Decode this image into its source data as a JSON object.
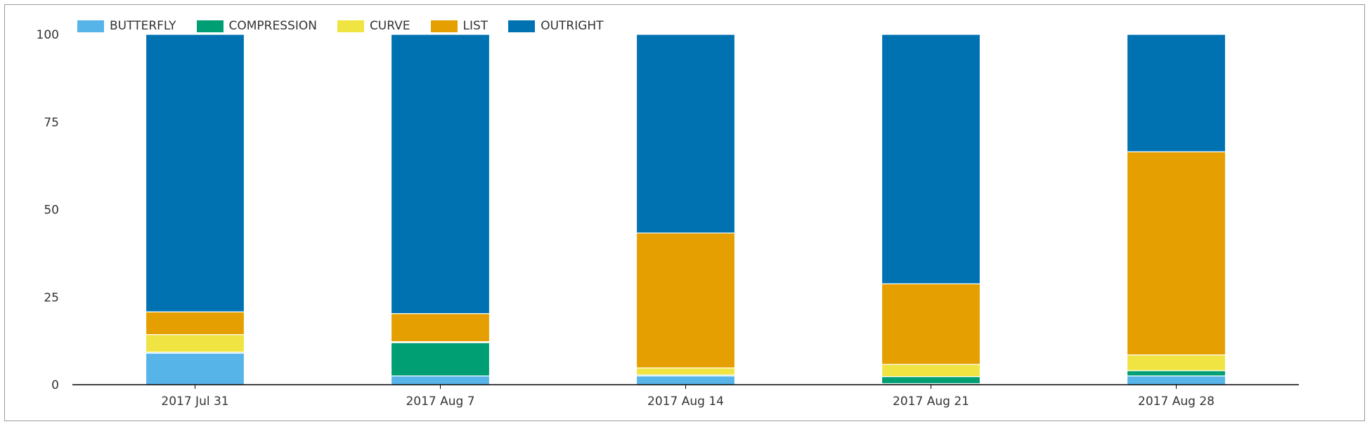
{
  "chart_data": {
    "type": "bar",
    "stacked": true,
    "title": "",
    "xlabel": "",
    "ylabel": "",
    "ylim": [
      0,
      100
    ],
    "yticks": [
      "0",
      "25",
      "50",
      "75",
      "100"
    ],
    "categories": [
      "2017 Jul 31",
      "2017 Aug 7",
      "2017 Aug 14",
      "2017 Aug 21",
      "2017 Aug 28"
    ],
    "series": [
      {
        "name": "BUTTERFLY",
        "color": "#56b4e9",
        "values": [
          9,
          2.5,
          2.5,
          0.3,
          2.5
        ]
      },
      {
        "name": "COMPRESSION",
        "color": "#009e73",
        "values": [
          0.3,
          9.5,
          0.3,
          2,
          1.5
        ]
      },
      {
        "name": "CURVE",
        "color": "#f0e442",
        "values": [
          5,
          0.3,
          2,
          3.5,
          4.5
        ]
      },
      {
        "name": "LIST",
        "color": "#e69f00",
        "values": [
          6.5,
          8,
          38.5,
          23,
          58
        ]
      },
      {
        "name": "OUTRIGHT",
        "color": "#0072b2",
        "values": [
          79.2,
          79.7,
          56.7,
          71.2,
          33.5
        ]
      }
    ],
    "grid": false,
    "legend_position": "top-left"
  }
}
